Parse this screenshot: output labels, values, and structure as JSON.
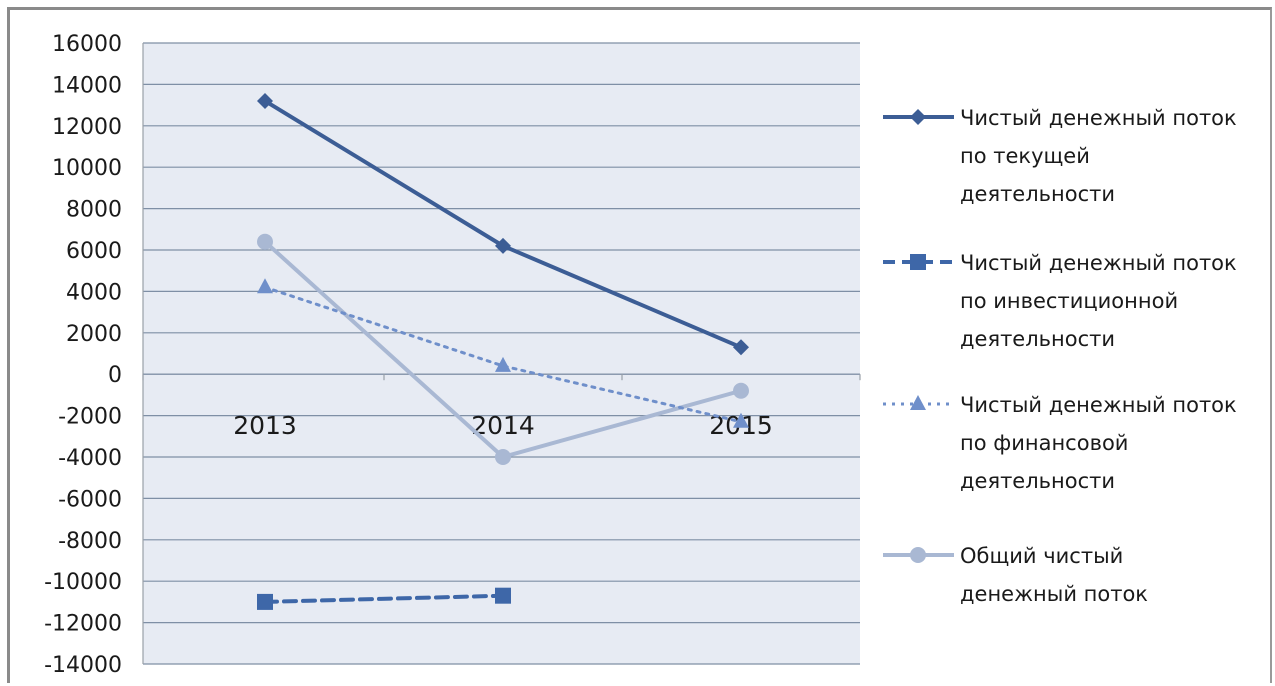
{
  "chart_data": {
    "type": "line",
    "categories": [
      "2013",
      "2014",
      "2015"
    ],
    "ylim": [
      -14000,
      16000
    ],
    "yticks": [
      16000,
      14000,
      12000,
      10000,
      8000,
      6000,
      4000,
      2000,
      0,
      -2000,
      -4000,
      -6000,
      -8000,
      -10000,
      -12000,
      -14000
    ],
    "grid": true,
    "plot_background": "#e7ebf3",
    "gridline_color": "#7f8fa5",
    "legend_position": "right",
    "series": [
      {
        "name": "Чистый денежный поток по текущей деятельности",
        "legend_lines": [
          "Чистый денежный поток",
          "по текущей",
          "деятельности"
        ],
        "values": [
          13200,
          6200,
          1300
        ],
        "color": "#3c5d95",
        "line_style": "solid",
        "marker": "diamond"
      },
      {
        "name": "Чистый денежный поток по инвестиционной деятельности",
        "legend_lines": [
          "Чистый денежный поток",
          "по инвестиционной",
          "деятельности"
        ],
        "values": [
          -11000,
          -10700,
          null
        ],
        "color": "#3e67a8",
        "line_style": "dashed",
        "marker": "square"
      },
      {
        "name": "Чистый денежный поток по финансовой деятельности",
        "legend_lines": [
          "Чистый денежный поток",
          "по финансовой",
          "деятельности"
        ],
        "values": [
          4200,
          400,
          -2300
        ],
        "color": "#6f8fca",
        "line_style": "dotted",
        "marker": "triangle"
      },
      {
        "name": "Общий чистый денежный поток",
        "legend_lines": [
          "Общий чистый",
          "денежный поток"
        ],
        "values": [
          6400,
          -4000,
          -800
        ],
        "color": "#a9b8d3",
        "line_style": "solid",
        "marker": "circle"
      }
    ]
  }
}
